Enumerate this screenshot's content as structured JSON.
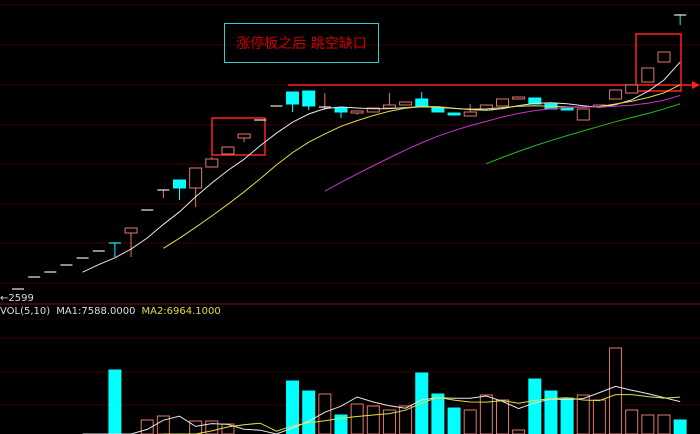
{
  "colors": {
    "up": "#e0786a",
    "down": "#00ffff",
    "ma5": "#e8e8e8",
    "ma10": "#e0e040",
    "ma20": "#cc33cc",
    "ma30": "#22bb22",
    "grid": "#3a0000",
    "annotation": "#ff2020"
  },
  "annotation_text": "涨停板之后 跳空缺口",
  "low_marker": {
    "arrow": "←",
    "value": "2599"
  },
  "volume_legend": {
    "label": "VOL(5,10)",
    "ma1": "MA1:7588.0000",
    "ma2": "MA2:6964.1000"
  },
  "chart_data": [
    {
      "type": "candlestick",
      "ma_periods": [
        5,
        10,
        20,
        30
      ],
      "grid": true,
      "candles": [
        [
          2607,
          2607,
          2607,
          2607
        ],
        [
          2703,
          2703,
          2703,
          2703
        ],
        [
          2743,
          2743,
          2743,
          2743
        ],
        [
          2799,
          2799,
          2799,
          2799
        ],
        [
          2855,
          2855,
          2855,
          2855
        ],
        [
          2911,
          2911,
          2911,
          2911
        ],
        [
          2975,
          2975,
          2863,
          2974
        ],
        [
          3055,
          3095,
          2863,
          3095
        ],
        [
          3239,
          3239,
          3239,
          3239
        ],
        [
          3399,
          3399,
          3335,
          3399
        ],
        [
          3479,
          3479,
          3319,
          3415
        ],
        [
          3415,
          3575,
          3263,
          3575
        ],
        [
          3583,
          3663,
          3583,
          3647
        ],
        [
          3687,
          3743,
          3687,
          3743
        ],
        [
          3815,
          3847,
          3783,
          3847
        ],
        [
          3959,
          3959,
          3959,
          3959
        ],
        [
          4071,
          4071,
          4071,
          4071
        ],
        [
          4183,
          4183,
          4023,
          4087
        ],
        [
          4191,
          4191,
          4039,
          4071
        ],
        [
          4063,
          4175,
          4039,
          4063
        ],
        [
          4055,
          4055,
          3975,
          4023
        ],
        [
          4015,
          4031,
          4000,
          4031
        ],
        [
          4023,
          4055,
          4023,
          4055
        ],
        [
          4055,
          4175,
          4055,
          4079
        ],
        [
          4079,
          4103,
          4079,
          4103
        ],
        [
          4127,
          4183,
          4063,
          4063
        ],
        [
          4055,
          4055,
          4023,
          4023
        ],
        [
          4015,
          4015,
          3999,
          3999
        ],
        [
          3991,
          4087,
          3991,
          4023
        ],
        [
          4039,
          4079,
          4039,
          4079
        ],
        [
          4071,
          4127,
          4071,
          4127
        ],
        [
          4127,
          4143,
          4127,
          4143
        ],
        [
          4135,
          4135,
          4087,
          4087
        ],
        [
          4087,
          4087,
          4047,
          4047
        ],
        [
          4055,
          4055,
          4039,
          4039
        ],
        [
          3959,
          4047,
          3959,
          4047
        ],
        [
          4063,
          4079,
          4063,
          4079
        ],
        [
          4127,
          4199,
          4127,
          4199
        ],
        [
          4175,
          4239,
          4175,
          4239
        ],
        [
          4263,
          4375,
          4263,
          4375
        ],
        [
          4423,
          4503,
          4423,
          4503
        ],
        [
          4799,
          4799,
          4719,
          4798
        ]
      ],
      "candle_fields": [
        "open",
        "high",
        "low",
        "close"
      ],
      "marked_low": 2599
    },
    {
      "type": "bar",
      "title": "VOL(5,10)",
      "ma_periods": [
        5,
        10
      ],
      "values": [
        300,
        400,
        500,
        600,
        800,
        1000,
        10000,
        3500,
        5000,
        5400,
        3000,
        4900,
        4900,
        4600,
        3000,
        2500,
        2000,
        8900,
        7900,
        7600,
        5500,
        6600,
        6400,
        6000,
        6400,
        9700,
        7600,
        6200,
        6000,
        7500,
        7000,
        4000,
        9100,
        7900,
        7200,
        7500,
        7000,
        12200,
        6000,
        5500,
        5500,
        5000
      ]
    }
  ]
}
